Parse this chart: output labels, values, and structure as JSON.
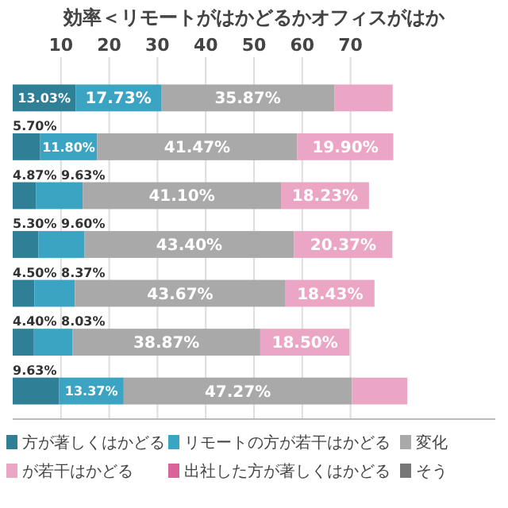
{
  "chart_data": {
    "type": "bar",
    "orientation": "horizontal",
    "stacked": true,
    "title": "効率＜リモートがはかどるかオフィスがはか",
    "categories": [
      null,
      null,
      null,
      null,
      null,
      null,
      null
    ],
    "xlim": [
      0,
      100
    ],
    "xticks": [
      10,
      20,
      30,
      40,
      50,
      60,
      70
    ],
    "grid": "x",
    "legend": "bottom",
    "series": [
      {
        "name": "方が著しくはかどる",
        "color": "#2f7f96",
        "values": [
          13.03,
          5.7,
          4.87,
          5.3,
          4.5,
          4.4,
          9.63
        ],
        "value_labels": [
          "13.03%",
          "5.70%",
          "4.87%",
          "5.30%",
          "4.50%",
          "4.40%",
          "9.63%"
        ]
      },
      {
        "name": "リモートの方が若干はかどる",
        "color": "#3ba4c2",
        "values": [
          17.73,
          11.8,
          9.63,
          9.6,
          8.37,
          8.03,
          13.37
        ],
        "value_labels": [
          "17.73%",
          "11.80%",
          "9.63%",
          "9.60%",
          "8.37%",
          "8.03%",
          "13.37%"
        ]
      },
      {
        "name": "変化",
        "color": "#a9a9a9",
        "values": [
          35.87,
          41.47,
          41.1,
          43.4,
          43.67,
          38.87,
          47.27
        ],
        "value_labels": [
          "35.87%",
          "41.47%",
          "41.10%",
          "43.40%",
          "43.67%",
          "38.87%",
          "47.27%"
        ]
      },
      {
        "name": "が若干はかどる",
        "color": "#eba6c5",
        "values": [
          12.1,
          19.9,
          18.23,
          20.37,
          18.43,
          18.5,
          11.5
        ],
        "value_labels": [
          null,
          "19.90%",
          "18.23%",
          "20.37%",
          "18.43%",
          "18.50%",
          null
        ]
      },
      {
        "name": "出社した方が著しくはかどる",
        "color": "#d9629b",
        "values": [
          null,
          null,
          null,
          null,
          null,
          null,
          null
        ]
      },
      {
        "name": "そう",
        "color": "#777777",
        "values": [
          null,
          null,
          null,
          null,
          null,
          null,
          null
        ]
      }
    ]
  }
}
